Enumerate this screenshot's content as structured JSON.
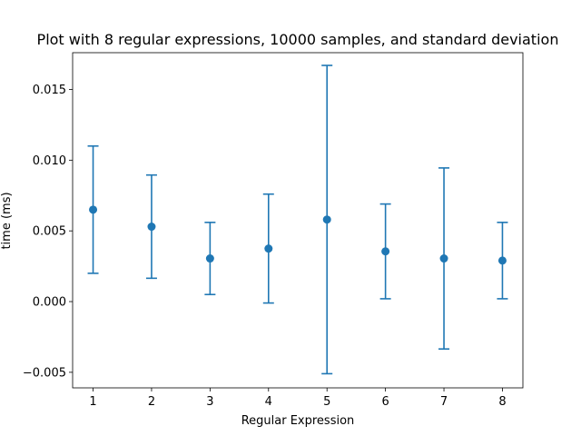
{
  "chart_data": {
    "type": "scatter",
    "title": "Plot with 8 regular expressions, 10000 samples, and standard deviation",
    "xlabel": "Regular Expression",
    "ylabel": "time (ms)",
    "xlim": [
      0.65,
      8.35
    ],
    "ylim": [
      -0.0061,
      0.0176
    ],
    "xticks": [
      1,
      2,
      3,
      4,
      5,
      6,
      7,
      8
    ],
    "xtick_labels": [
      "1",
      "2",
      "3",
      "4",
      "5",
      "6",
      "7",
      "8"
    ],
    "yticks": [
      -0.005,
      0.0,
      0.005,
      0.01,
      0.015
    ],
    "ytick_labels": [
      "−0.005",
      "0.000",
      "0.005",
      "0.010",
      "0.015"
    ],
    "grid": false,
    "color": "#1f77b4",
    "series": [
      {
        "x": [
          1,
          2,
          3,
          4,
          5,
          6,
          7,
          8
        ],
        "y": [
          0.0065,
          0.0053,
          0.00305,
          0.00375,
          0.0058,
          0.00355,
          0.00305,
          0.0029
        ],
        "error": [
          0.0045,
          0.00365,
          0.00255,
          0.00385,
          0.0109,
          0.00335,
          0.0064,
          0.0027
        ]
      }
    ]
  }
}
